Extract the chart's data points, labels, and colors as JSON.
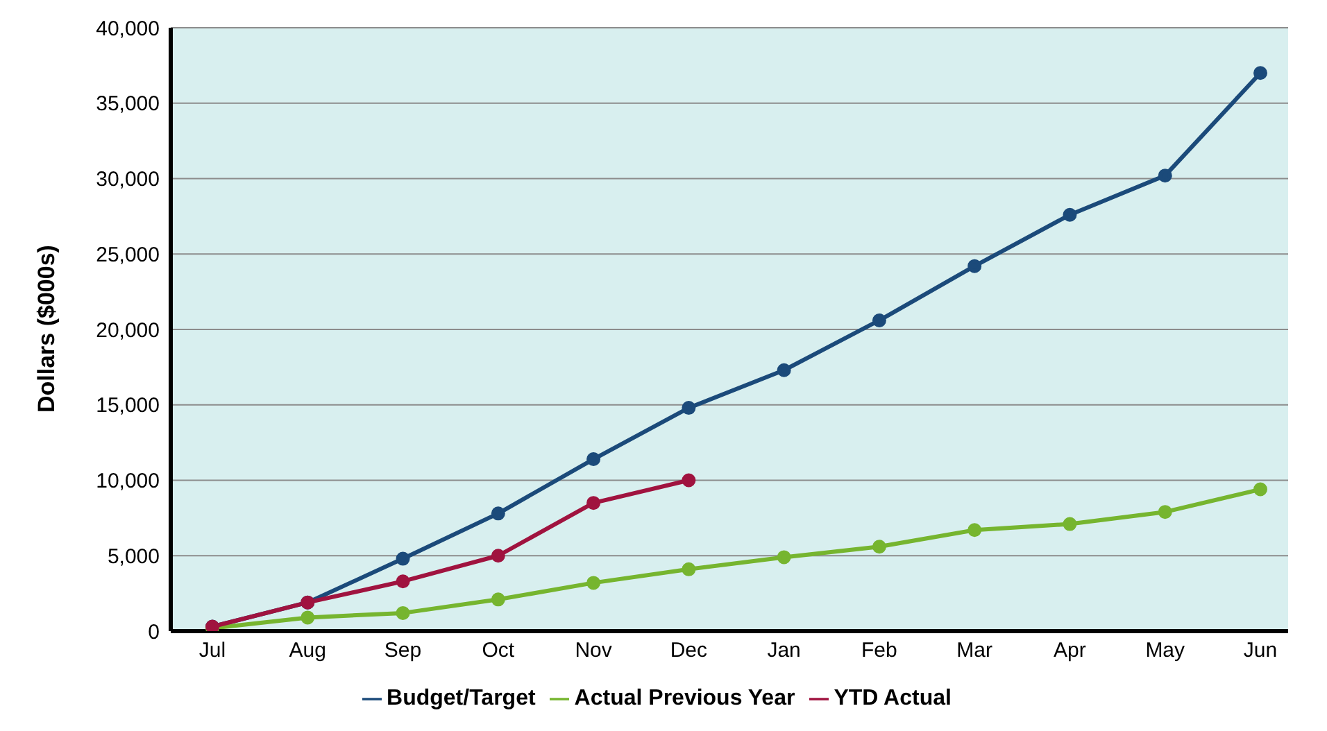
{
  "chart_data": {
    "type": "line",
    "ylabel": "Dollars ($000s)",
    "categories": [
      "Jul",
      "Aug",
      "Sep",
      "Oct",
      "Nov",
      "Dec",
      "Jan",
      "Feb",
      "Mar",
      "Apr",
      "May",
      "Jun"
    ],
    "series": [
      {
        "name": "Budget/Target",
        "color": "#1b4a7a",
        "values": [
          300,
          1900,
          4800,
          7800,
          11400,
          14800,
          17300,
          20600,
          24200,
          27600,
          30200,
          37000
        ]
      },
      {
        "name": "Actual Previous Year",
        "color": "#76b52f",
        "values": [
          200,
          900,
          1200,
          2100,
          3200,
          4100,
          4900,
          5600,
          6700,
          7100,
          7900,
          9400
        ]
      },
      {
        "name": "YTD Actual",
        "color": "#a0133f",
        "values": [
          300,
          1900,
          3300,
          5000,
          8500,
          10000,
          null,
          null,
          null,
          null,
          null,
          null
        ]
      }
    ],
    "ylim": [
      0,
      40000
    ],
    "yticks": [
      0,
      {
        "value": 5000,
        "label": "5,000"
      },
      {
        "value": 10000,
        "label": "10,000"
      },
      {
        "value": 15000,
        "label": "15,000"
      },
      {
        "value": 20000,
        "label": "20,000"
      },
      {
        "value": 25000,
        "label": "25,000"
      },
      {
        "value": 30000,
        "label": "30,000"
      },
      {
        "value": 35000,
        "label": "35,000"
      },
      {
        "value": 40000,
        "label": "40,000"
      }
    ],
    "grid": "y",
    "legend": "bottom",
    "marker": "circle",
    "line_style": "solid"
  }
}
